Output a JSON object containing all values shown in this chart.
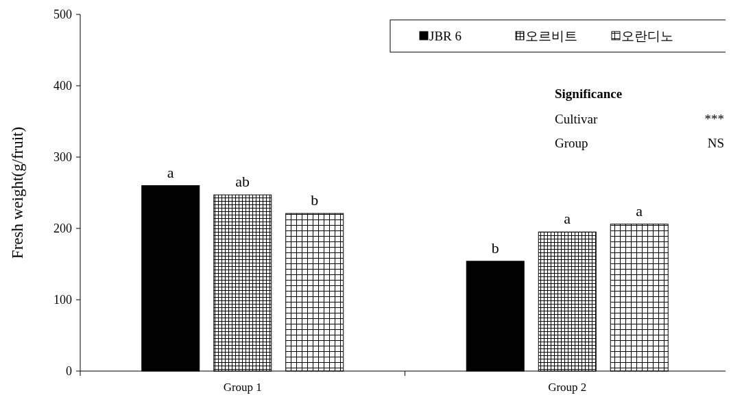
{
  "chart_data": {
    "type": "bar",
    "ylabel": "Fresh weight(g/fruit)",
    "categories": [
      "Group 1",
      "Group 2"
    ],
    "series": [
      {
        "name": "JBR 6",
        "color": "#000000",
        "values": [
          260,
          154
        ],
        "value_labels": [
          "a",
          "b"
        ]
      },
      {
        "name": "오르비트",
        "color": "#000000",
        "values": [
          247,
          195
        ],
        "value_labels": [
          "ab",
          "a"
        ]
      },
      {
        "name": "오란디노",
        "color": "#000000",
        "values": [
          221,
          206
        ],
        "value_labels": [
          "b",
          "a"
        ]
      }
    ],
    "ylim": [
      0,
      500
    ],
    "yticks": [
      0,
      100,
      200,
      300,
      400,
      500
    ],
    "grid": false,
    "legend": "top right",
    "annotations": [
      "Significance",
      "Cultivar",
      "***",
      "Group",
      "NS"
    ]
  }
}
